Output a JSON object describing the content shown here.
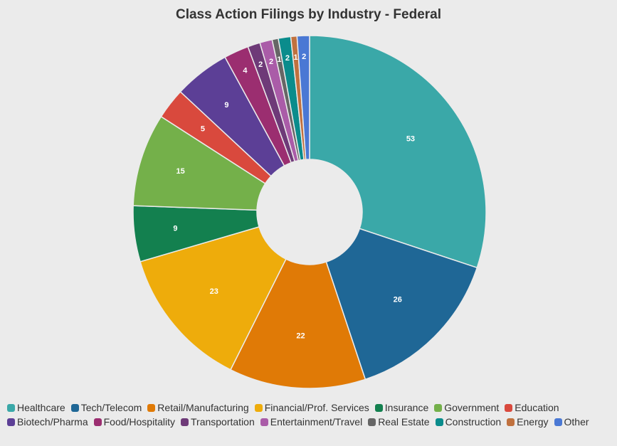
{
  "chart_data": {
    "type": "pie",
    "title": "Class Action Filings by Industry - Federal",
    "legend_position": "bottom",
    "donut": true,
    "categories": [
      "Healthcare",
      "Tech/Telecom",
      "Retail/Manufacturing",
      "Financial/Prof. Services",
      "Insurance",
      "Government",
      "Education",
      "Biotech/Pharma",
      "Food/Hospitality",
      "Transportation",
      "Entertainment/Travel",
      "Real Estate",
      "Construction",
      "Energy",
      "Other"
    ],
    "values": [
      53,
      26,
      22,
      23,
      9,
      15,
      5,
      9,
      4,
      2,
      2,
      1,
      2,
      1,
      2
    ],
    "data_labels": [
      "53",
      "26",
      "22",
      "23",
      "9",
      "15",
      "5",
      "9",
      "4",
      "2",
      "2",
      "1",
      "2",
      "1",
      "2"
    ],
    "colors": [
      "#3aa8a8",
      "#1f6796",
      "#e07a06",
      "#eeac0b",
      "#13804f",
      "#74b04a",
      "#d9493d",
      "#5c3f96",
      "#9b2e70",
      "#6e3a78",
      "#aa5ca8",
      "#666666",
      "#0a8c8c",
      "#c0713e",
      "#4a78d4"
    ]
  }
}
